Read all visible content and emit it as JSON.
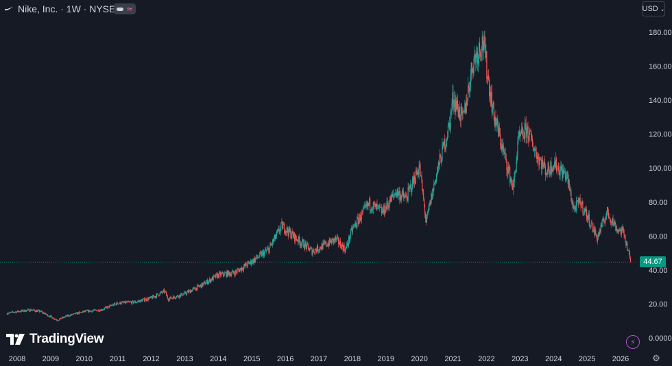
{
  "header": {
    "title": "Nike, Inc. · 1W · NYSE",
    "pill_icon": "≈",
    "currency": "USD",
    "currency_chevron": "⌄"
  },
  "branding": {
    "logo_text": "TradingView"
  },
  "colors": {
    "background": "#161a25",
    "up": "#26a69a",
    "down": "#ef5350",
    "grid_text": "#d1d4dc",
    "price_tag": "#089981"
  },
  "chart_data": {
    "type": "candlestick",
    "title": "Nike, Inc. · 1W · NYSE",
    "interval": "1W",
    "currency": "USD",
    "last_price": "44.67",
    "y_ticks": [
      "180.00",
      "160.00",
      "140.00",
      "120.00",
      "100.00",
      "80.00",
      "60.00",
      "40.00",
      "20.00",
      "0.0000"
    ],
    "x_ticks": [
      "2008",
      "2009",
      "2010",
      "2011",
      "2012",
      "2013",
      "2014",
      "2015",
      "2016",
      "2017",
      "2018",
      "2019",
      "2020",
      "2021",
      "2022",
      "2023",
      "2024",
      "2025",
      "2026"
    ],
    "ylim": [
      0,
      190
    ],
    "xlim": [
      2007.7,
      2026.6
    ],
    "grid": false,
    "price_path": [
      [
        2007.7,
        14.5
      ],
      [
        2008.0,
        15.5
      ],
      [
        2008.4,
        16.5
      ],
      [
        2008.7,
        15.5
      ],
      [
        2009.0,
        12.5
      ],
      [
        2009.2,
        10.5
      ],
      [
        2009.5,
        13.0
      ],
      [
        2010.0,
        15.5
      ],
      [
        2010.5,
        16.5
      ],
      [
        2011.0,
        20.5
      ],
      [
        2011.5,
        21.0
      ],
      [
        2012.0,
        23.5
      ],
      [
        2012.4,
        27.5
      ],
      [
        2012.5,
        23.0
      ],
      [
        2013.0,
        26.0
      ],
      [
        2013.5,
        31.0
      ],
      [
        2014.0,
        37.0
      ],
      [
        2014.5,
        38.5
      ],
      [
        2015.0,
        45.0
      ],
      [
        2015.5,
        52.0
      ],
      [
        2015.9,
        66.0
      ],
      [
        2016.3,
        59.0
      ],
      [
        2016.8,
        51.0
      ],
      [
        2017.2,
        55.0
      ],
      [
        2017.5,
        58.0
      ],
      [
        2017.8,
        52.0
      ],
      [
        2018.0,
        64.0
      ],
      [
        2018.5,
        79.0
      ],
      [
        2018.9,
        74.0
      ],
      [
        2019.3,
        86.0
      ],
      [
        2019.6,
        82.0
      ],
      [
        2020.0,
        101.0
      ],
      [
        2020.2,
        68.0
      ],
      [
        2020.5,
        96.0
      ],
      [
        2020.9,
        126.0
      ],
      [
        2021.0,
        142.0
      ],
      [
        2021.3,
        128.0
      ],
      [
        2021.6,
        163.0
      ],
      [
        2021.9,
        175.0
      ],
      [
        2022.0,
        160.0
      ],
      [
        2022.2,
        133.0
      ],
      [
        2022.5,
        110.0
      ],
      [
        2022.8,
        88.0
      ],
      [
        2022.95,
        116.0
      ],
      [
        2023.2,
        123.0
      ],
      [
        2023.5,
        108.0
      ],
      [
        2023.8,
        98.0
      ],
      [
        2024.0,
        103.0
      ],
      [
        2024.4,
        95.0
      ],
      [
        2024.6,
        76.0
      ],
      [
        2024.8,
        80.0
      ],
      [
        2025.0,
        72.0
      ],
      [
        2025.3,
        59.0
      ],
      [
        2025.6,
        74.0
      ],
      [
        2025.9,
        64.0
      ],
      [
        2026.1,
        62.0
      ],
      [
        2026.3,
        44.67
      ]
    ]
  }
}
